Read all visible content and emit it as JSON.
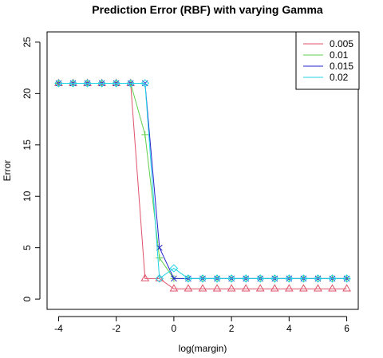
{
  "chart_data": {
    "type": "line",
    "title": "Prediction Error (RBF) with varying Gamma",
    "xlabel": "log(margin)",
    "ylabel": "Error",
    "xlim": [
      -4.4,
      6.4
    ],
    "ylim": [
      -1,
      26
    ],
    "x_ticks": [
      -4,
      -2,
      0,
      2,
      4,
      6
    ],
    "y_ticks": [
      0,
      5,
      10,
      15,
      20,
      25
    ],
    "x_tick_labels": [
      "-4",
      "-2",
      "0",
      "2",
      "4",
      "6"
    ],
    "y_tick_labels": [
      "0",
      "5",
      "10",
      "15",
      "20",
      "25"
    ],
    "x": [
      -4,
      -3.5,
      -3,
      -2.5,
      -2,
      -1.5,
      -1,
      -0.5,
      0,
      0.5,
      1,
      1.5,
      2,
      2.5,
      3,
      3.5,
      4,
      4.5,
      5,
      5.5,
      6
    ],
    "series": [
      {
        "name": "0.005",
        "color": "#df536b",
        "marker": "triangle",
        "values": [
          21,
          21,
          21,
          21,
          21,
          21,
          2,
          2,
          1,
          1,
          1,
          1,
          1,
          1,
          1,
          1,
          1,
          1,
          1,
          1,
          1
        ]
      },
      {
        "name": "0.01",
        "color": "#61d04f",
        "marker": "plus",
        "values": [
          21,
          21,
          21,
          21,
          21,
          21,
          16,
          4,
          2,
          2,
          2,
          2,
          2,
          2,
          2,
          2,
          2,
          2,
          2,
          2,
          2
        ]
      },
      {
        "name": "0.015",
        "color": "#2222cc",
        "marker": "cross",
        "values": [
          21,
          21,
          21,
          21,
          21,
          21,
          21,
          5,
          2,
          2,
          2,
          2,
          2,
          2,
          2,
          2,
          2,
          2,
          2,
          2,
          2
        ]
      },
      {
        "name": "0.02",
        "color": "#22d3e6",
        "marker": "diamond",
        "values": [
          21,
          21,
          21,
          21,
          21,
          21,
          21,
          2,
          3,
          2,
          2,
          2,
          2,
          2,
          2,
          2,
          2,
          2,
          2,
          2,
          2
        ]
      }
    ],
    "legend_position": "top-right",
    "grid": false
  }
}
